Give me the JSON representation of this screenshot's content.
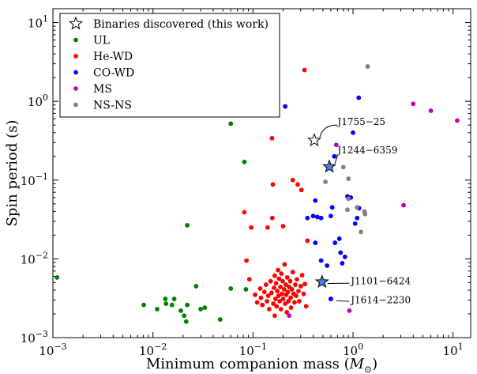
{
  "chart_data": {
    "type": "scatter",
    "xscale": "log",
    "yscale": "log",
    "xlim": [
      0.001,
      15
    ],
    "ylim": [
      0.001,
      15
    ],
    "xlabel": "Minimum companion mass (",
    "xlabel_unit": "M",
    "xlabel_sub": "⊙",
    "xlabel_end": ")",
    "ylabel": "Spin period (s)",
    "x_ticks": [
      {
        "base": "10",
        "exp": "−3",
        "value": 0.001
      },
      {
        "base": "10",
        "exp": "−2",
        "value": 0.01
      },
      {
        "base": "10",
        "exp": "−1",
        "value": 0.1
      },
      {
        "base": "10",
        "exp": "0",
        "value": 1
      },
      {
        "base": "10",
        "exp": "1",
        "value": 10
      }
    ],
    "y_ticks": [
      {
        "base": "10",
        "exp": "−3",
        "value": 0.001
      },
      {
        "base": "10",
        "exp": "−2",
        "value": 0.01
      },
      {
        "base": "10",
        "exp": "−1",
        "value": 0.1
      },
      {
        "base": "10",
        "exp": "0",
        "value": 1
      },
      {
        "base": "10",
        "exp": "1",
        "value": 10
      }
    ],
    "legend_position": "top-left",
    "series": [
      {
        "name": "UL",
        "color": "#008000",
        "marker": "circle",
        "points": [
          [
            0.0011,
            0.0058
          ],
          [
            0.0081,
            0.0026
          ],
          [
            0.011,
            0.0023
          ],
          [
            0.0133,
            0.0031
          ],
          [
            0.0135,
            0.0027
          ],
          [
            0.0155,
            0.0026
          ],
          [
            0.0163,
            0.0031
          ],
          [
            0.019,
            0.0022
          ],
          [
            0.0205,
            0.0019
          ],
          [
            0.0215,
            0.0016
          ],
          [
            0.022,
            0.0026
          ],
          [
            0.022,
            0.0267
          ],
          [
            0.027,
            0.0045
          ],
          [
            0.03,
            0.0023
          ],
          [
            0.033,
            0.0024
          ],
          [
            0.047,
            0.0017
          ],
          [
            0.06,
            0.52
          ],
          [
            0.06,
            0.0042
          ],
          [
            0.082,
            0.17
          ],
          [
            0.085,
            0.0041
          ]
        ]
      },
      {
        "name": "He-WD",
        "color": "#ff0000",
        "marker": "circle",
        "points": [
          [
            0.082,
            0.039
          ],
          [
            0.086,
            0.0095
          ],
          [
            0.092,
            0.0055
          ],
          [
            0.096,
            0.025
          ],
          [
            0.105,
            0.0035
          ],
          [
            0.11,
            0.0028
          ],
          [
            0.118,
            0.0042
          ],
          [
            0.12,
            0.0032
          ],
          [
            0.124,
            0.0026
          ],
          [
            0.13,
            0.0038
          ],
          [
            0.135,
            0.0047
          ],
          [
            0.138,
            0.0029
          ],
          [
            0.142,
            0.0034
          ],
          [
            0.145,
            0.0023
          ],
          [
            0.15,
            0.0052
          ],
          [
            0.153,
            0.0037
          ],
          [
            0.156,
            0.033
          ],
          [
            0.158,
            0.088
          ],
          [
            0.16,
            0.0027
          ],
          [
            0.162,
            0.0043
          ],
          [
            0.165,
            0.0061
          ],
          [
            0.168,
            0.0031
          ],
          [
            0.17,
            0.0049
          ],
          [
            0.172,
            0.0025
          ],
          [
            0.175,
            0.0039
          ],
          [
            0.178,
            0.0072
          ],
          [
            0.18,
            0.0034
          ],
          [
            0.182,
            0.0056
          ],
          [
            0.185,
            0.0029
          ],
          [
            0.188,
            0.0044
          ],
          [
            0.19,
            0.0023
          ],
          [
            0.192,
            0.0065
          ],
          [
            0.195,
            0.0036
          ],
          [
            0.198,
            0.0052
          ],
          [
            0.2,
            0.026
          ],
          [
            0.2,
            0.0031
          ],
          [
            0.205,
            0.0041
          ],
          [
            0.207,
            0.0085
          ],
          [
            0.21,
            0.0027
          ],
          [
            0.213,
            0.0047
          ],
          [
            0.215,
            0.0035
          ],
          [
            0.218,
            0.0021
          ],
          [
            0.22,
            0.0058
          ],
          [
            0.223,
            0.0038
          ],
          [
            0.226,
            0.0029
          ],
          [
            0.23,
            0.0044
          ],
          [
            0.235,
            0.0052
          ],
          [
            0.238,
            0.0032
          ],
          [
            0.24,
            0.0024
          ],
          [
            0.245,
            0.0041
          ],
          [
            0.25,
            0.1
          ],
          [
            0.25,
            0.0068
          ],
          [
            0.255,
            0.0036
          ],
          [
            0.26,
            0.0028
          ],
          [
            0.265,
            0.0047
          ],
          [
            0.27,
            0.0034
          ],
          [
            0.275,
            0.0055
          ],
          [
            0.28,
            0.088
          ],
          [
            0.285,
            0.0039
          ],
          [
            0.29,
            0.0029
          ],
          [
            0.3,
            0.0045
          ],
          [
            0.31,
            0.0062
          ],
          [
            0.32,
            0.0036
          ],
          [
            0.33,
            0.0048
          ],
          [
            0.34,
            0.0025
          ],
          [
            0.35,
            0.017
          ],
          [
            0.305,
            0.075
          ],
          [
            0.327,
            2.5
          ],
          [
            0.155,
            0.34
          ],
          [
            0.165,
            0.0019
          ],
          [
            0.14,
            0.025
          ]
        ]
      },
      {
        "name": "CO-WD",
        "color": "#0000ff",
        "marker": "circle",
        "points": [
          [
            0.21,
            0.86
          ],
          [
            0.35,
            0.033
          ],
          [
            0.4,
            0.035
          ],
          [
            0.44,
            0.034
          ],
          [
            0.48,
            0.033
          ],
          [
            0.42,
            0.016
          ],
          [
            0.48,
            0.0095
          ],
          [
            0.55,
            0.0082
          ],
          [
            0.6,
            0.035
          ],
          [
            0.62,
            0.045
          ],
          [
            0.66,
            0.016
          ],
          [
            0.73,
            0.018
          ],
          [
            0.75,
            0.012
          ],
          [
            0.78,
            0.0088
          ],
          [
            0.83,
            0.0106
          ],
          [
            0.88,
            0.062
          ],
          [
            0.95,
            0.06
          ],
          [
            1.0,
            0.4
          ],
          [
            1.05,
            0.028
          ],
          [
            1.1,
            0.033
          ],
          [
            1.14,
            1.11
          ],
          [
            1.15,
            0.044
          ],
          [
            0.65,
            0.2
          ],
          [
            0.6,
            0.0031
          ],
          [
            0.42,
            0.055
          ]
        ]
      },
      {
        "name": "MS",
        "color": "#bf00bf",
        "marker": "circle",
        "points": [
          [
            0.23,
            0.0019
          ],
          [
            0.68,
            0.28
          ],
          [
            0.92,
            0.0022
          ],
          [
            3.2,
            0.048
          ],
          [
            4.0,
            0.93
          ],
          [
            6.0,
            0.76
          ],
          [
            11.0,
            0.57
          ]
        ]
      },
      {
        "name": "NS-NS",
        "color": "#808080",
        "marker": "circle",
        "points": [
          [
            0.53,
            0.095
          ],
          [
            0.8,
            0.146
          ],
          [
            0.9,
            0.104
          ],
          [
            0.9,
            0.058
          ],
          [
            0.88,
            0.042
          ],
          [
            1.1,
            0.045
          ],
          [
            1.2,
            0.022
          ],
          [
            1.3,
            0.04
          ],
          [
            1.32,
            0.037
          ],
          [
            1.4,
            2.77
          ]
        ]
      },
      {
        "name": "Binaries discovered (this work)",
        "marker": "star",
        "points": [
          {
            "x": 0.41,
            "y": 0.32,
            "fill": "#ffffff",
            "label": "J1755−25",
            "label_at": [
              0.7,
              0.55
            ],
            "arrow_from": [
              0.72,
              0.5
            ]
          },
          {
            "x": 0.58,
            "y": 0.148,
            "fill": "#4f7fe0",
            "label": "J1244−6359",
            "label_at": [
              0.7,
              0.24
            ],
            "arrow_from": [
              0.72,
              0.21
            ]
          },
          {
            "x": 0.49,
            "y": 0.0051,
            "fill": "#4f7fe0",
            "label": "J1101−6424",
            "label_at": [
              0.95,
              0.0052
            ],
            "arrow_from": [
              0.95,
              0.0049
            ]
          },
          {
            "x": 0.6,
            "y": 0.0031,
            "fill": "#0000ff",
            "marker": "circle",
            "label": "J1614−2230",
            "label_at": [
              0.95,
              0.003
            ],
            "arrow_from": [
              0.95,
              0.0029
            ]
          }
        ]
      }
    ]
  }
}
